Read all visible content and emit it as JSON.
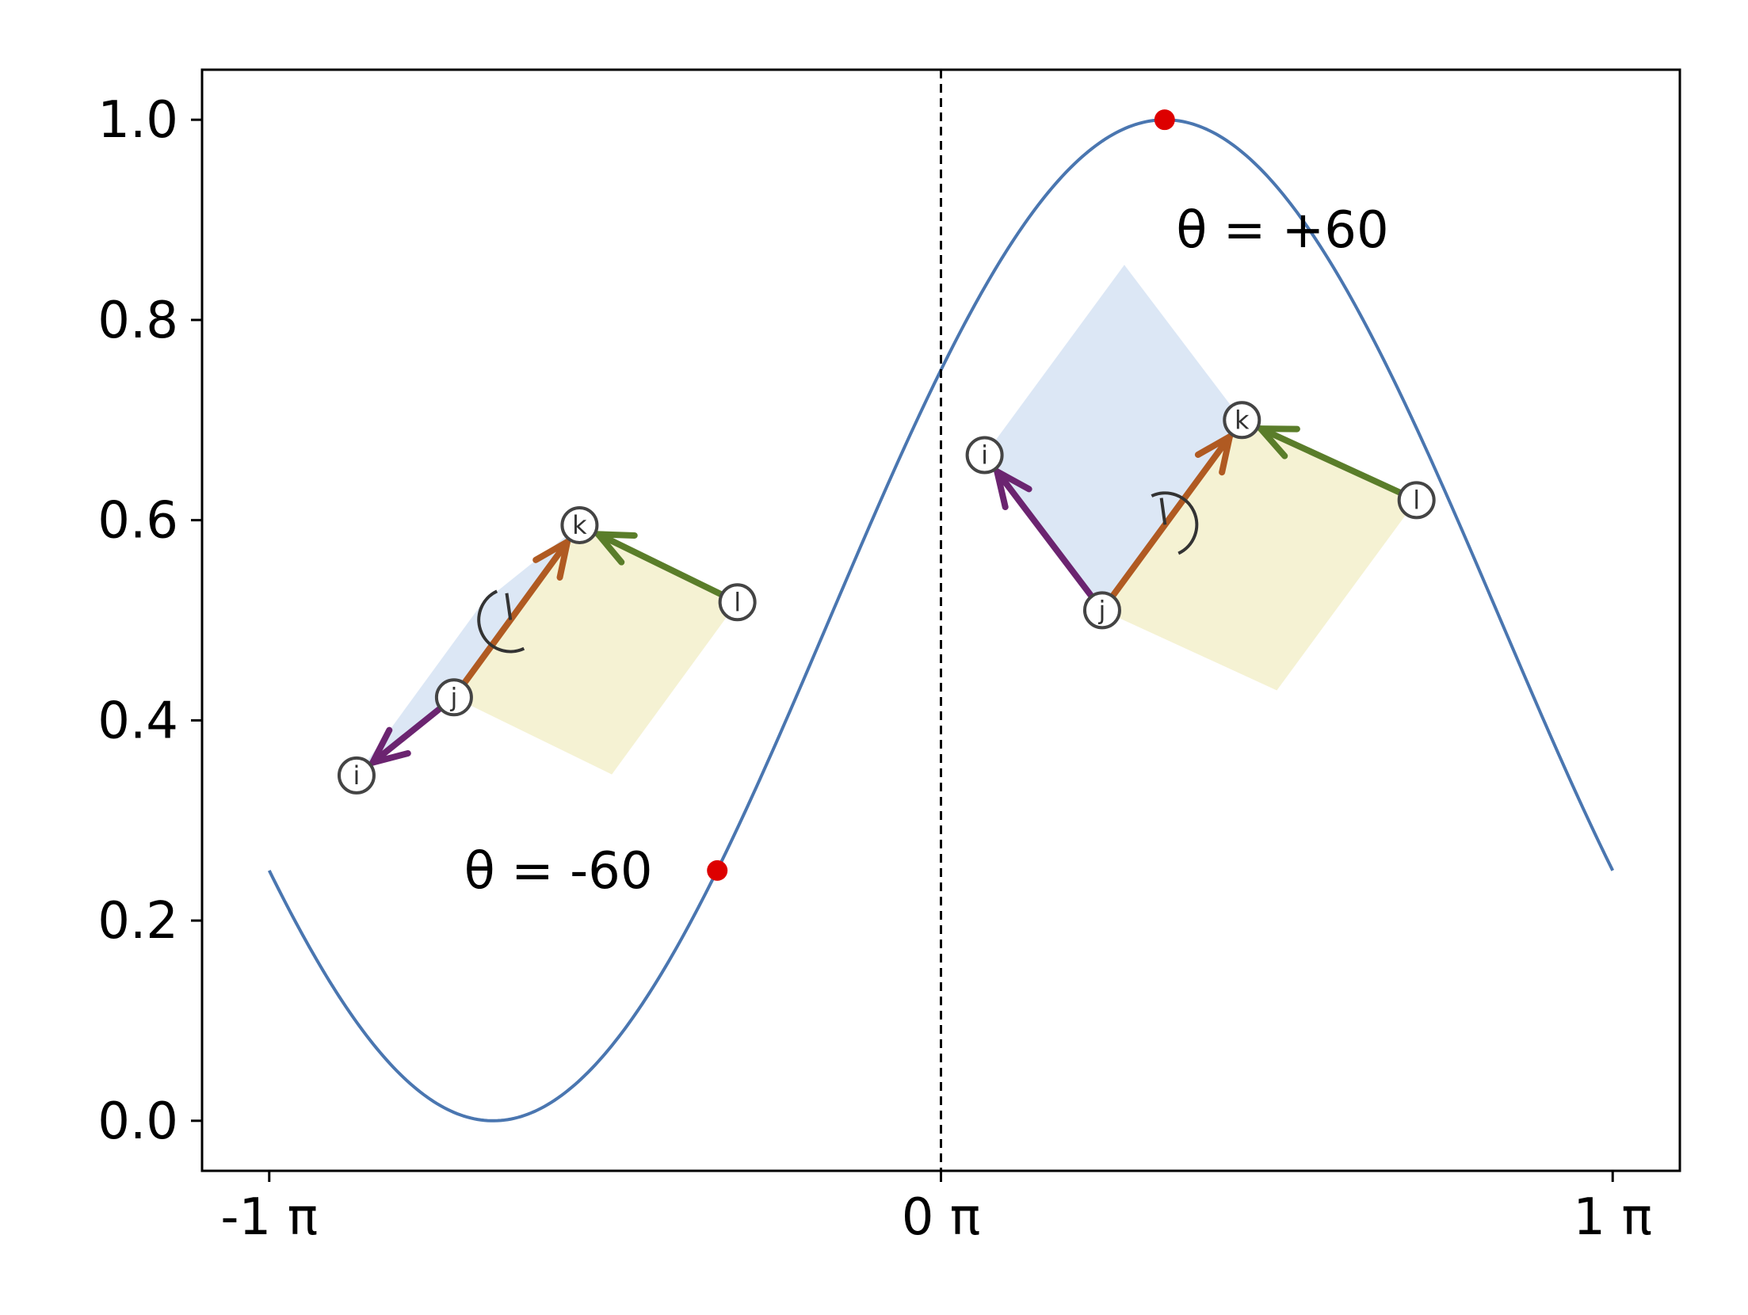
{
  "chart_data": {
    "type": "line",
    "title": "",
    "xlabel": "",
    "ylabel": "",
    "xlim": [
      -1.1,
      1.1
    ],
    "ylim": [
      -0.05,
      1.05
    ],
    "grid": false,
    "x_ticks": [
      {
        "value": -1,
        "label": "-1 π"
      },
      {
        "value": 0,
        "label": "0 π"
      },
      {
        "value": 1,
        "label": "1 π"
      }
    ],
    "y_ticks": [
      {
        "value": 0.0,
        "label": "0.0"
      },
      {
        "value": 0.2,
        "label": "0.2"
      },
      {
        "value": 0.4,
        "label": "0.4"
      },
      {
        "value": 0.6,
        "label": "0.6"
      },
      {
        "value": 0.8,
        "label": "0.8"
      },
      {
        "value": 1.0,
        "label": "1.0"
      }
    ],
    "series": [
      {
        "function": "0.5 * (1 + cos(x - π/3))",
        "x_range_pi": [
          -1,
          1
        ],
        "color": "#4a76b0"
      }
    ],
    "vertical_line": {
      "x": 0,
      "style": "dashed",
      "color": "#000000"
    },
    "highlight_points": [
      {
        "x": -0.333,
        "y": 0.25,
        "color": "#dd0000"
      },
      {
        "x": 0.333,
        "y": 1.0,
        "color": "#dd0000"
      }
    ],
    "annotations": [
      {
        "text": "θ = -60",
        "x": -0.71,
        "y": 0.25
      },
      {
        "text": "θ = +60",
        "x": 0.35,
        "y": 0.89
      }
    ],
    "dihedral_diagrams": [
      {
        "angle_label": "θ = -60",
        "atoms": [
          {
            "label": "i",
            "x": -0.87,
            "y": 0.345
          },
          {
            "label": "j",
            "x": -0.725,
            "y": 0.423
          },
          {
            "label": "k",
            "x": -0.538,
            "y": 0.595
          },
          {
            "label": "l",
            "x": -0.303,
            "y": 0.518
          }
        ]
      },
      {
        "angle_label": "θ = +60",
        "atoms": [
          {
            "label": "i",
            "x": 0.065,
            "y": 0.665
          },
          {
            "label": "j",
            "x": 0.24,
            "y": 0.51
          },
          {
            "label": "k",
            "x": 0.448,
            "y": 0.7
          },
          {
            "label": "l",
            "x": 0.708,
            "y": 0.62
          }
        ]
      }
    ],
    "diagram_colors": {
      "bond_ij": "#6b2470",
      "bond_jk": "#b05a22",
      "bond_lk": "#5a7d2a",
      "plane_ijk": "#dce7f5",
      "plane_jkl": "#f5f2d3"
    }
  }
}
